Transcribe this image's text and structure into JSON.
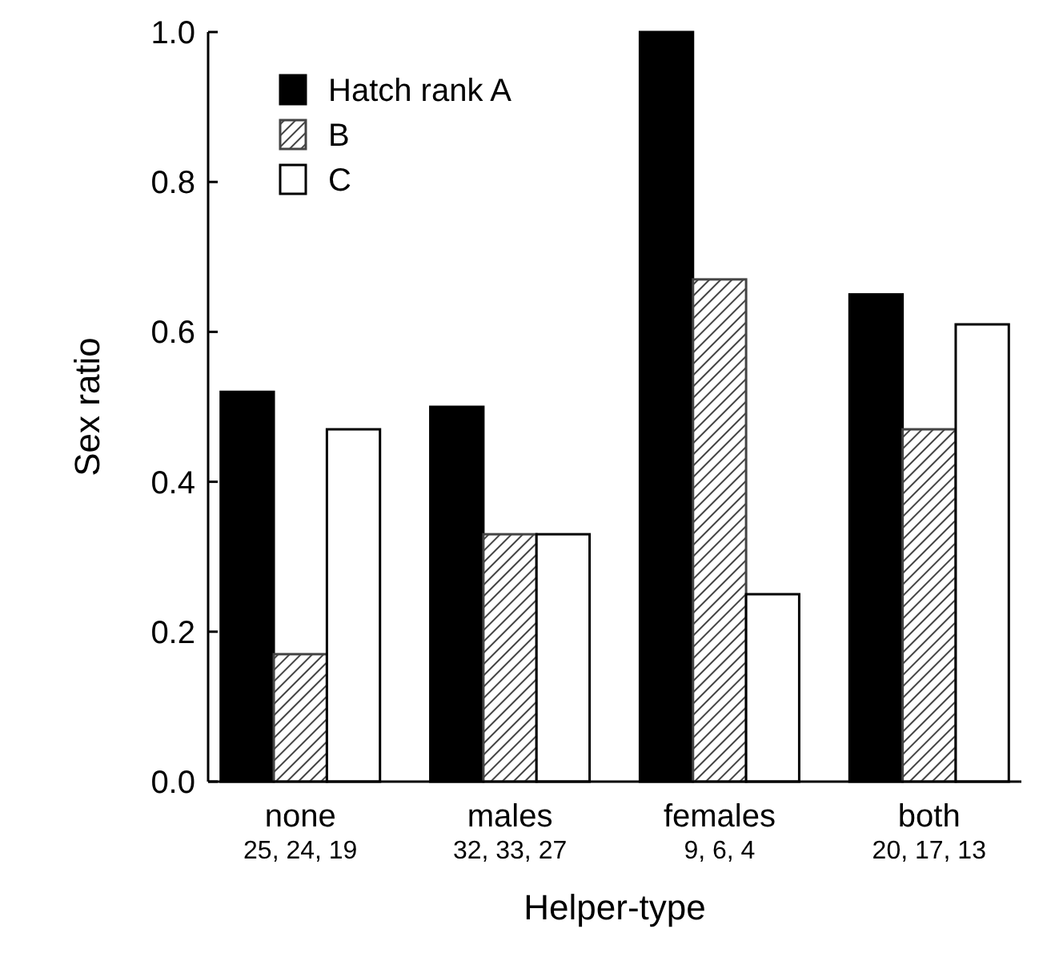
{
  "chart_data": {
    "type": "bar",
    "xlabel": "Helper-type",
    "ylabel": "Sex ratio",
    "categories": [
      "none\n25, 24, 19",
      "males\n32, 33, 27",
      "females\n9, 6, 4",
      "both\n20, 17, 13"
    ],
    "series": [
      {
        "name": "Hatch rank A",
        "color": "#000000",
        "values": [
          0.52,
          0.5,
          1.0,
          0.65
        ]
      },
      {
        "name": "B",
        "color": "#444444",
        "values": [
          0.17,
          0.33,
          0.67,
          0.47
        ]
      },
      {
        "name": "C",
        "color": "#ffffff",
        "values": [
          0.47,
          0.33,
          0.25,
          0.61
        ]
      }
    ],
    "ylim": [
      0,
      1.0
    ],
    "yticks": [
      {
        "value": 0,
        "label": "0.0"
      },
      {
        "value": 0.2,
        "label": "0.2"
      },
      {
        "value": 0.4,
        "label": "0.4"
      },
      {
        "value": 0.6,
        "label": "0.6"
      },
      {
        "value": 0.8,
        "label": "0.8"
      },
      {
        "value": 1.0,
        "label": "1.0"
      }
    ],
    "grid": false,
    "legend": "top left"
  }
}
